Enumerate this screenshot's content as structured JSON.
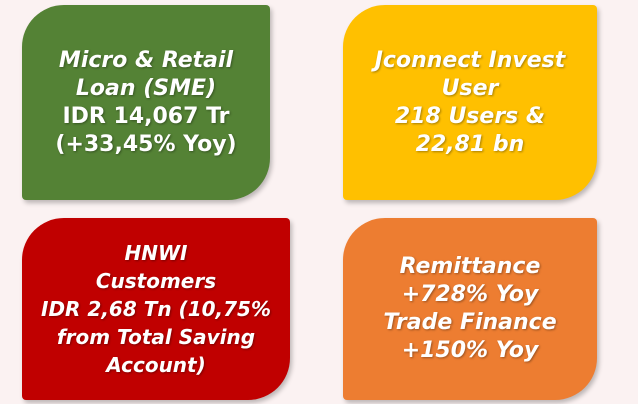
{
  "tiles": [
    {
      "color": "#548235",
      "lines": [
        {
          "text": "Micro & Retail",
          "italic": true
        },
        {
          "text": "Loan (SME)",
          "italic": true
        },
        {
          "text": "IDR 14,067 Tr",
          "italic": false
        },
        {
          "text": "(+33,45% Yoy)",
          "italic": false
        }
      ]
    },
    {
      "color": "#ffc000",
      "lines": [
        {
          "text": "Jconnect Invest",
          "italic": true
        },
        {
          "text": "User",
          "italic": true
        },
        {
          "text": "218 Users &",
          "italic": true
        },
        {
          "text": "22,81 bn",
          "italic": true
        }
      ]
    },
    {
      "color": "#c00000",
      "lines": [
        {
          "text": "HNWI",
          "italic": true
        },
        {
          "text": "Customers",
          "italic": true
        },
        {
          "text": "IDR 2,68 Tn (10,75%",
          "italic": true
        },
        {
          "text": "from Total Saving",
          "italic": true
        },
        {
          "text": "Account)",
          "italic": true
        }
      ]
    },
    {
      "color": "#ed7d31",
      "lines": [
        {
          "text": "Remittance",
          "italic": true
        },
        {
          "text": "+728% Yoy",
          "italic": true
        },
        {
          "text": "Trade Finance",
          "italic": true
        },
        {
          "text": "+150% Yoy",
          "italic": true
        }
      ]
    }
  ]
}
